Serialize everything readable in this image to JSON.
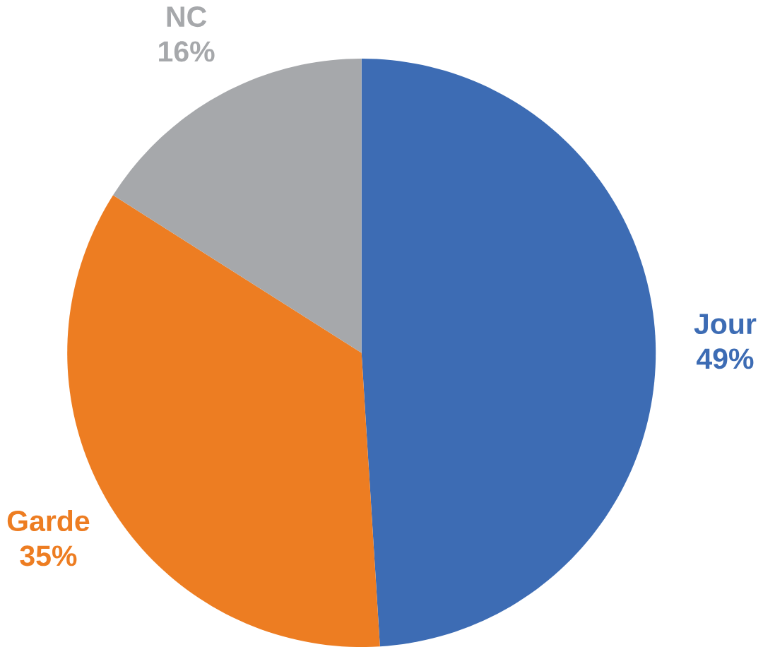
{
  "chart_data": {
    "type": "pie",
    "categories": [
      "Jour",
      "Garde",
      "NC"
    ],
    "values": [
      49,
      35,
      16
    ],
    "colors": [
      "#3d6cb4",
      "#ed7d22",
      "#a6a8ab"
    ],
    "value_labels": [
      "49%",
      "35%",
      "16%"
    ]
  }
}
